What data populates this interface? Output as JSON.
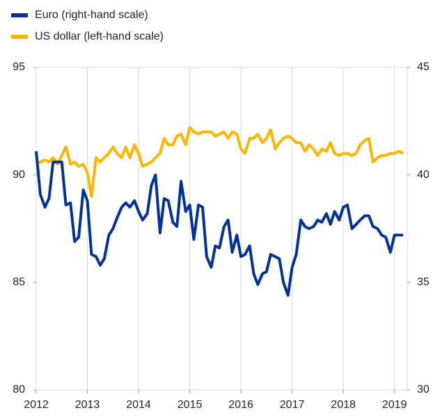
{
  "chart_data": {
    "type": "line",
    "x": [
      2012.0,
      2012.08,
      2012.17,
      2012.25,
      2012.33,
      2012.42,
      2012.5,
      2012.58,
      2012.67,
      2012.75,
      2012.83,
      2012.92,
      2013.0,
      2013.08,
      2013.17,
      2013.25,
      2013.33,
      2013.42,
      2013.5,
      2013.58,
      2013.67,
      2013.75,
      2013.83,
      2013.92,
      2014.0,
      2014.08,
      2014.17,
      2014.25,
      2014.33,
      2014.42,
      2014.5,
      2014.58,
      2014.67,
      2014.75,
      2014.83,
      2014.92,
      2015.0,
      2015.08,
      2015.17,
      2015.25,
      2015.33,
      2015.42,
      2015.5,
      2015.58,
      2015.67,
      2015.75,
      2015.83,
      2015.92,
      2016.0,
      2016.08,
      2016.17,
      2016.25,
      2016.33,
      2016.42,
      2016.5,
      2016.58,
      2016.67,
      2016.75,
      2016.83,
      2016.92,
      2017.0,
      2017.08,
      2017.17,
      2017.25,
      2017.33,
      2017.42,
      2017.5,
      2017.58,
      2017.67,
      2017.75,
      2017.83,
      2017.92,
      2018.0,
      2018.08,
      2018.17,
      2018.25,
      2018.33,
      2018.42,
      2018.5,
      2018.58,
      2018.67,
      2018.75,
      2018.83,
      2018.92,
      2019.0,
      2019.08,
      2019.17
    ],
    "series": [
      {
        "name": "Euro (right-hand scale)",
        "color": "#003299",
        "axis": "y2",
        "values": [
          41.1,
          39.1,
          38.5,
          38.9,
          40.6,
          40.6,
          40.6,
          38.6,
          38.7,
          36.9,
          37.1,
          39.3,
          38.8,
          36.3,
          36.2,
          35.8,
          36.1,
          37.2,
          37.5,
          38.0,
          38.5,
          38.7,
          38.5,
          38.8,
          38.3,
          37.9,
          38.2,
          39.5,
          40.0,
          37.3,
          38.9,
          38.8,
          37.8,
          37.6,
          39.7,
          38.3,
          38.6,
          37.0,
          38.6,
          38.5,
          36.2,
          35.7,
          36.7,
          36.6,
          37.6,
          37.9,
          36.4,
          37.2,
          36.2,
          36.3,
          36.7,
          35.4,
          34.9,
          35.4,
          35.5,
          36.3,
          36.2,
          36.1,
          35.0,
          34.4,
          35.7,
          36.3,
          37.9,
          37.6,
          37.5,
          37.6,
          37.9,
          37.8,
          38.2,
          37.7,
          38.3,
          37.9,
          38.5,
          38.6,
          37.5,
          37.7,
          37.9,
          38.1,
          38.1,
          37.6,
          37.5,
          37.2,
          37.1,
          36.4,
          37.2,
          37.2,
          37.2
        ]
      },
      {
        "name": "US dollar (left-hand scale)",
        "color": "#ffb400",
        "values": [
          90.5,
          90.6,
          90.7,
          90.6,
          90.8,
          90.5,
          90.9,
          91.3,
          90.5,
          90.6,
          90.4,
          90.5,
          90.1,
          89.0,
          90.8,
          90.6,
          90.8,
          91.0,
          91.3,
          91.0,
          90.8,
          91.3,
          90.8,
          91.4,
          91.0,
          90.4,
          90.5,
          90.6,
          90.8,
          91.0,
          91.7,
          91.4,
          91.4,
          91.8,
          91.9,
          91.4,
          92.2,
          92.0,
          91.9,
          92.0,
          92.0,
          92.0,
          91.8,
          91.9,
          92.0,
          91.7,
          92.0,
          91.9,
          91.2,
          91.0,
          91.7,
          91.7,
          91.9,
          91.5,
          91.7,
          92.1,
          91.2,
          91.5,
          91.7,
          91.8,
          91.7,
          91.5,
          91.5,
          91.1,
          91.4,
          91.2,
          90.9,
          91.2,
          91.1,
          91.5,
          91.0,
          90.9,
          91.0,
          91.0,
          90.9,
          91.0,
          91.4,
          91.6,
          91.7,
          90.6,
          90.8,
          90.9,
          90.9,
          91.0,
          91.0,
          91.1,
          91.0
        ]
      }
    ],
    "xlim": [
      2012,
      2019.25
    ],
    "xticks": [
      2012,
      2013,
      2014,
      2015,
      2016,
      2017,
      2018,
      2019
    ],
    "ylim": [
      80,
      95
    ],
    "yticks": [
      80,
      85,
      90,
      95
    ],
    "y2lim": [
      30,
      45
    ],
    "y2ticks": [
      30,
      35,
      40,
      45
    ],
    "grid": true,
    "legend": "top-left"
  }
}
